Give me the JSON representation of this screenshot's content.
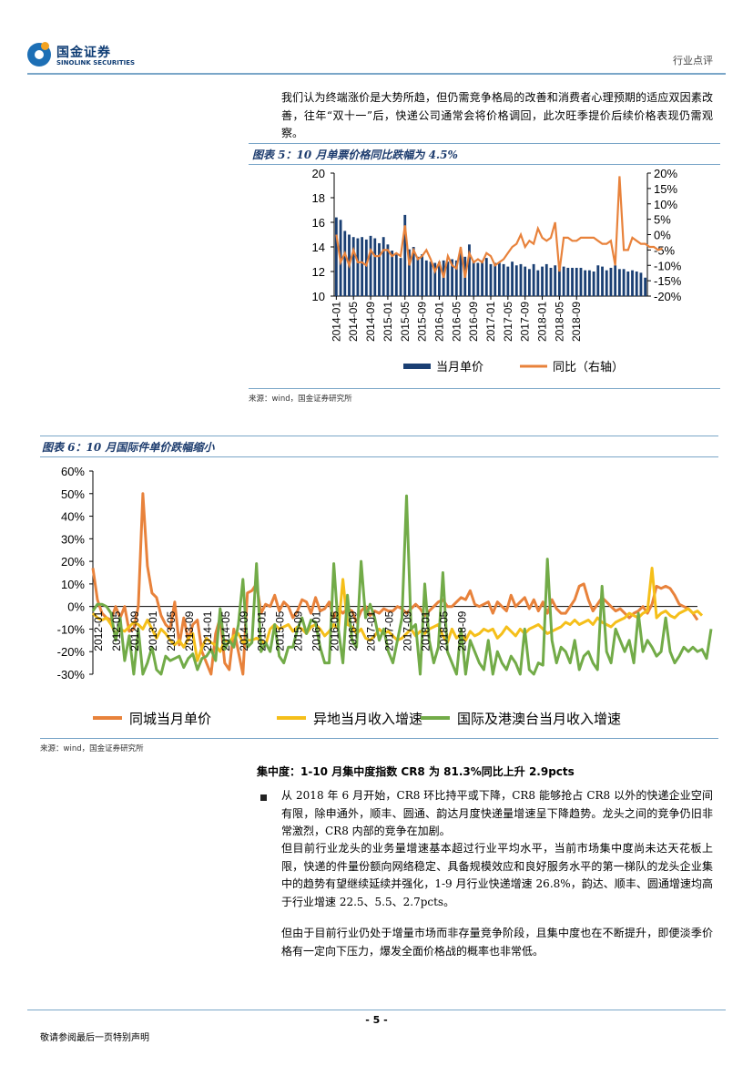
{
  "header": {
    "logo_cn": "国金证券",
    "logo_en": "SINOLINK SECURITIES",
    "report_type": "行业点评"
  },
  "intro_paragraph": "我们认为终端涨价是大势所趋，但仍需竞争格局的改善和消费者心理预期的适应双因素改善，往年“双十一”后，快递公司通常会将价格调回，此次旺季提价后续价格表现仍需观察。",
  "figure5": {
    "title": "图表 5：10 月单票价格同比跌幅为 4.5%",
    "source": "来源：wind，国金证券研究所"
  },
  "figure6": {
    "title": "图表 6：10 月国际件单价跌幅缩小",
    "source": "来源：wind，国金证券研究所"
  },
  "concentration": {
    "title": "集中度：1-10 月集中度指数 CR8 为 81.3%同比上升 2.9pcts",
    "bullet_paragraph": "从 2018 年 6 月开始，CR8 环比持平或下降，CR8 能够抢占 CR8 以外的快递企业空间有限，除申通外，顺丰、圆通、韵达月度快递量增速呈下降趋势。龙头之间的竞争仍旧非常激烈，CR8 内部的竞争在加剧。",
    "paragraph2": "但目前行业龙头的业务量增速基本超过行业平均水平，当前市场集中度尚未达天花板上限，快递的件量份额向网络稳定、具备规模效应和良好服务水平的第一梯队的龙头企业集中的趋势有望继续延续并强化，1-9 月行业快递增速 26.8%，韵达、顺丰、圆通增速均高于行业增速 22.5、5.5、2.7pcts。",
    "paragraph3": "但由于目前行业仍处于增量市场而非存量竞争阶段，且集中度也在不断提升，即便淡季价格有一定向下压力，爆发全面价格战的概率也非常低。"
  },
  "footer": {
    "page_number": "- 5 -",
    "disclaimer": "敬请参阅最后一页特别声明"
  },
  "colors": {
    "navy": "#1a3f73",
    "orange": "#e8823b",
    "yellow": "#f5bf1a",
    "green": "#72ab48",
    "rule": "#7aa6c8"
  },
  "chart_data": [
    {
      "type": "bar+line",
      "title": "图表 5：10 月单票价格同比跌幅为 4.5%",
      "xlabel": "",
      "ylabel": "",
      "ylim_left": [
        10,
        20
      ],
      "ylim_right": [
        -20,
        20
      ],
      "left_ticks": [
        "10",
        "12",
        "14",
        "16",
        "18",
        "20"
      ],
      "right_ticks": [
        "-20%",
        "-15%",
        "-10%",
        "-5%",
        "0%",
        "5%",
        "10%",
        "15%",
        "20%"
      ],
      "x_tick_labels": [
        "2014-01",
        "2014-05",
        "2014-09",
        "2015-01",
        "2015-05",
        "2015-09",
        "2016-01",
        "2016-05",
        "2016-09",
        "2017-01",
        "2017-05",
        "2017-09",
        "2018-01",
        "2018-05",
        "2018-09"
      ],
      "series": [
        {
          "name": "当月单价",
          "kind": "bar",
          "axis": "left",
          "values": [
            16.4,
            16.2,
            15.3,
            15.0,
            14.8,
            14.7,
            14.8,
            14.6,
            14.9,
            14.7,
            14.3,
            14.8,
            14.2,
            13.7,
            13.4,
            13.1,
            16.6,
            13.8,
            14.0,
            13.2,
            13.4,
            12.9,
            12.8,
            12.7,
            12.8,
            12.9,
            12.8,
            13.0,
            12.9,
            13.7,
            13.2,
            14.2,
            12.8,
            12.7,
            12.9,
            13.1,
            12.6,
            12.7,
            12.7,
            12.6,
            12.4,
            12.8,
            12.5,
            12.6,
            12.4,
            12.2,
            12.6,
            12.1,
            12.4,
            12.6,
            12.3,
            12.5,
            12.2,
            12.4,
            12.3,
            12.3,
            12.3,
            12.3,
            12.1,
            12.1,
            12.0,
            12.5,
            12.4,
            12.1,
            12.3,
            12.5,
            12.2,
            12.2,
            12.0,
            12.1,
            12.0,
            11.9,
            11.5
          ]
        },
        {
          "name": "同比（右轴）",
          "kind": "line",
          "axis": "right",
          "values": [
            0,
            -9,
            -6,
            -10,
            -5,
            -9,
            -9,
            -10,
            -5,
            -7,
            -7,
            -5,
            -5,
            -7,
            -6,
            -7,
            3,
            -10,
            -5,
            -8,
            -7,
            -5,
            -8,
            -12,
            -9,
            -14,
            -7,
            -10,
            -11,
            -4,
            -14,
            -6,
            -9,
            -8,
            -9,
            -6,
            -7,
            -10,
            -9,
            -8,
            -6,
            -4,
            -3,
            0,
            -4,
            -2,
            -3,
            2,
            -1,
            -2,
            -1,
            4,
            -12,
            -1,
            -1,
            -2,
            -2,
            -1,
            -1,
            -1,
            -1,
            -2,
            -3,
            -3,
            -2,
            -10,
            19,
            -5,
            -5,
            -1,
            -2,
            -3,
            -3,
            -4,
            -4,
            -5,
            -4.5
          ]
        }
      ],
      "legend": [
        "当月单价",
        "同比（右轴）"
      ]
    },
    {
      "type": "line",
      "title": "图表 6：10 月国际件单价跌幅缩小",
      "xlabel": "",
      "ylabel": "",
      "ylim": [
        -30,
        60
      ],
      "y_ticks": [
        "-30%",
        "-20%",
        "-10%",
        "0%",
        "10%",
        "20%",
        "30%",
        "40%",
        "50%",
        "60%"
      ],
      "x_tick_labels": [
        "2012-01",
        "2012-05",
        "2012-09",
        "2013-01",
        "2013-05",
        "2013-09",
        "2014-01",
        "2014-05",
        "2014-09",
        "2015-01",
        "2015-05",
        "2015-09",
        "2016-01",
        "2016-05",
        "2016-09",
        "2017-01",
        "2017-05",
        "2017-09",
        "2018-01",
        "2018-05",
        "2018-09"
      ],
      "series": [
        {
          "name": "同城当月单价",
          "values": [
            17,
            3,
            -3,
            -5,
            -6,
            0,
            -5,
            0,
            -11,
            -10,
            0,
            50,
            18,
            6,
            4,
            -4,
            -8,
            -10,
            2,
            -17,
            -5,
            -15,
            -8,
            -6,
            -20,
            -25,
            -32,
            -12,
            -5,
            -25,
            -28,
            -10,
            -20,
            -30,
            6,
            7,
            10,
            -3,
            1,
            0,
            5,
            -2,
            2,
            0,
            -5,
            -2,
            3,
            2,
            -3,
            4,
            -2,
            -1,
            2,
            -5,
            -1,
            -3,
            -1,
            -2,
            -7,
            -2,
            0,
            -4,
            -2,
            -3,
            -1,
            -2,
            -2,
            0,
            -1,
            -3,
            -1,
            1,
            -1,
            -4,
            -2,
            0,
            2,
            3,
            0,
            0,
            2,
            4,
            3,
            7,
            1,
            0,
            1,
            2,
            -3,
            2,
            0,
            -2,
            5,
            0,
            2,
            4,
            -1,
            3,
            -2,
            2,
            -3,
            3,
            -1,
            -3,
            -3,
            0,
            3,
            9,
            10,
            3,
            -2,
            1,
            4,
            2,
            0,
            -2,
            -1,
            -3,
            -5,
            -3,
            -2,
            0,
            -3,
            1,
            9,
            8,
            9,
            8,
            5,
            1,
            0,
            -1,
            -3,
            -6
          ]
        },
        {
          "name": "异地当月收入增速",
          "values": [
            -3,
            -5,
            -6,
            -5,
            -8,
            -12,
            -10,
            -11,
            -9,
            -7,
            -8,
            -10,
            -6,
            -10,
            -14,
            -10,
            -12,
            -15,
            -17,
            -15,
            -18,
            -14,
            -12,
            -24,
            -18,
            -14,
            -16,
            -17,
            -20,
            -15,
            -16,
            -13,
            -12,
            -16,
            -15,
            -15,
            -14,
            -15,
            -17,
            -10,
            -8,
            -10,
            -9,
            -8,
            -11,
            -9,
            -10,
            -12,
            -9,
            -8,
            -10,
            -13,
            -11,
            -8,
            -10,
            12,
            -8,
            -9,
            -12,
            -10,
            -14,
            -15,
            -13,
            -10,
            -12,
            -11,
            -13,
            -15,
            -14,
            -12,
            -10,
            -13,
            -11,
            -12,
            -10,
            -9,
            -8,
            -13,
            -16,
            -10,
            -14,
            -12,
            -15,
            -11,
            -13,
            -12,
            -10,
            -11,
            -10,
            -14,
            -12,
            -9,
            -11,
            -13,
            -10,
            -12,
            -10,
            -9,
            -8,
            -10,
            -12,
            -11,
            -10,
            -9,
            -7,
            -8,
            -6,
            -8,
            -7,
            -6,
            -8,
            -5,
            -7,
            -8,
            -9,
            -7,
            -6,
            -5,
            -3,
            -4,
            -5,
            -3,
            -2,
            17,
            -5,
            -3,
            -2,
            -4,
            -5,
            -3,
            -2,
            -1,
            -3,
            -2,
            -4
          ]
        },
        {
          "name": "国际及港澳台当月收入增速",
          "values": [
            -2,
            1,
            1,
            0,
            -3,
            -15,
            -5,
            -24,
            -13,
            -32,
            -10,
            -31,
            -25,
            -18,
            -28,
            -30,
            -22,
            -24,
            -23,
            -22,
            -27,
            -23,
            -21,
            -28,
            -23,
            -22,
            -19,
            -24,
            -1,
            -19,
            -15,
            -18,
            -8,
            12,
            -18,
            -16,
            19,
            -20,
            -16,
            -20,
            -8,
            -22,
            -25,
            -18,
            -18,
            -10,
            -5,
            -12,
            -6,
            -7,
            -18,
            -25,
            -25,
            19,
            -10,
            -25,
            5,
            -15,
            -18,
            20,
            -5,
            1,
            -5,
            -15,
            -10,
            -20,
            -25,
            -15,
            -5,
            49,
            -10,
            -8,
            -30,
            10,
            -15,
            -25,
            -18,
            15,
            -20,
            -25,
            -30,
            -10,
            -30,
            -15,
            -20,
            -25,
            -28,
            -15,
            -30,
            -20,
            -25,
            -28,
            -22,
            -25,
            -30,
            -10,
            -28,
            -30,
            -25,
            -26,
            21,
            -15,
            -25,
            -18,
            -20,
            -25,
            -15,
            -28,
            -22,
            -20,
            -25,
            -28,
            9,
            -20,
            -25,
            -10,
            -15,
            -20,
            -15,
            -25,
            -3,
            -20,
            -15,
            -18,
            -22,
            -20,
            -5,
            -20,
            -25,
            -22,
            -18,
            -20,
            -18,
            -20,
            -19,
            -23,
            -10
          ]
        }
      ],
      "legend": [
        "同城当月单价",
        "异地当月收入增速",
        "国际及港澳台当月收入增速"
      ]
    }
  ]
}
